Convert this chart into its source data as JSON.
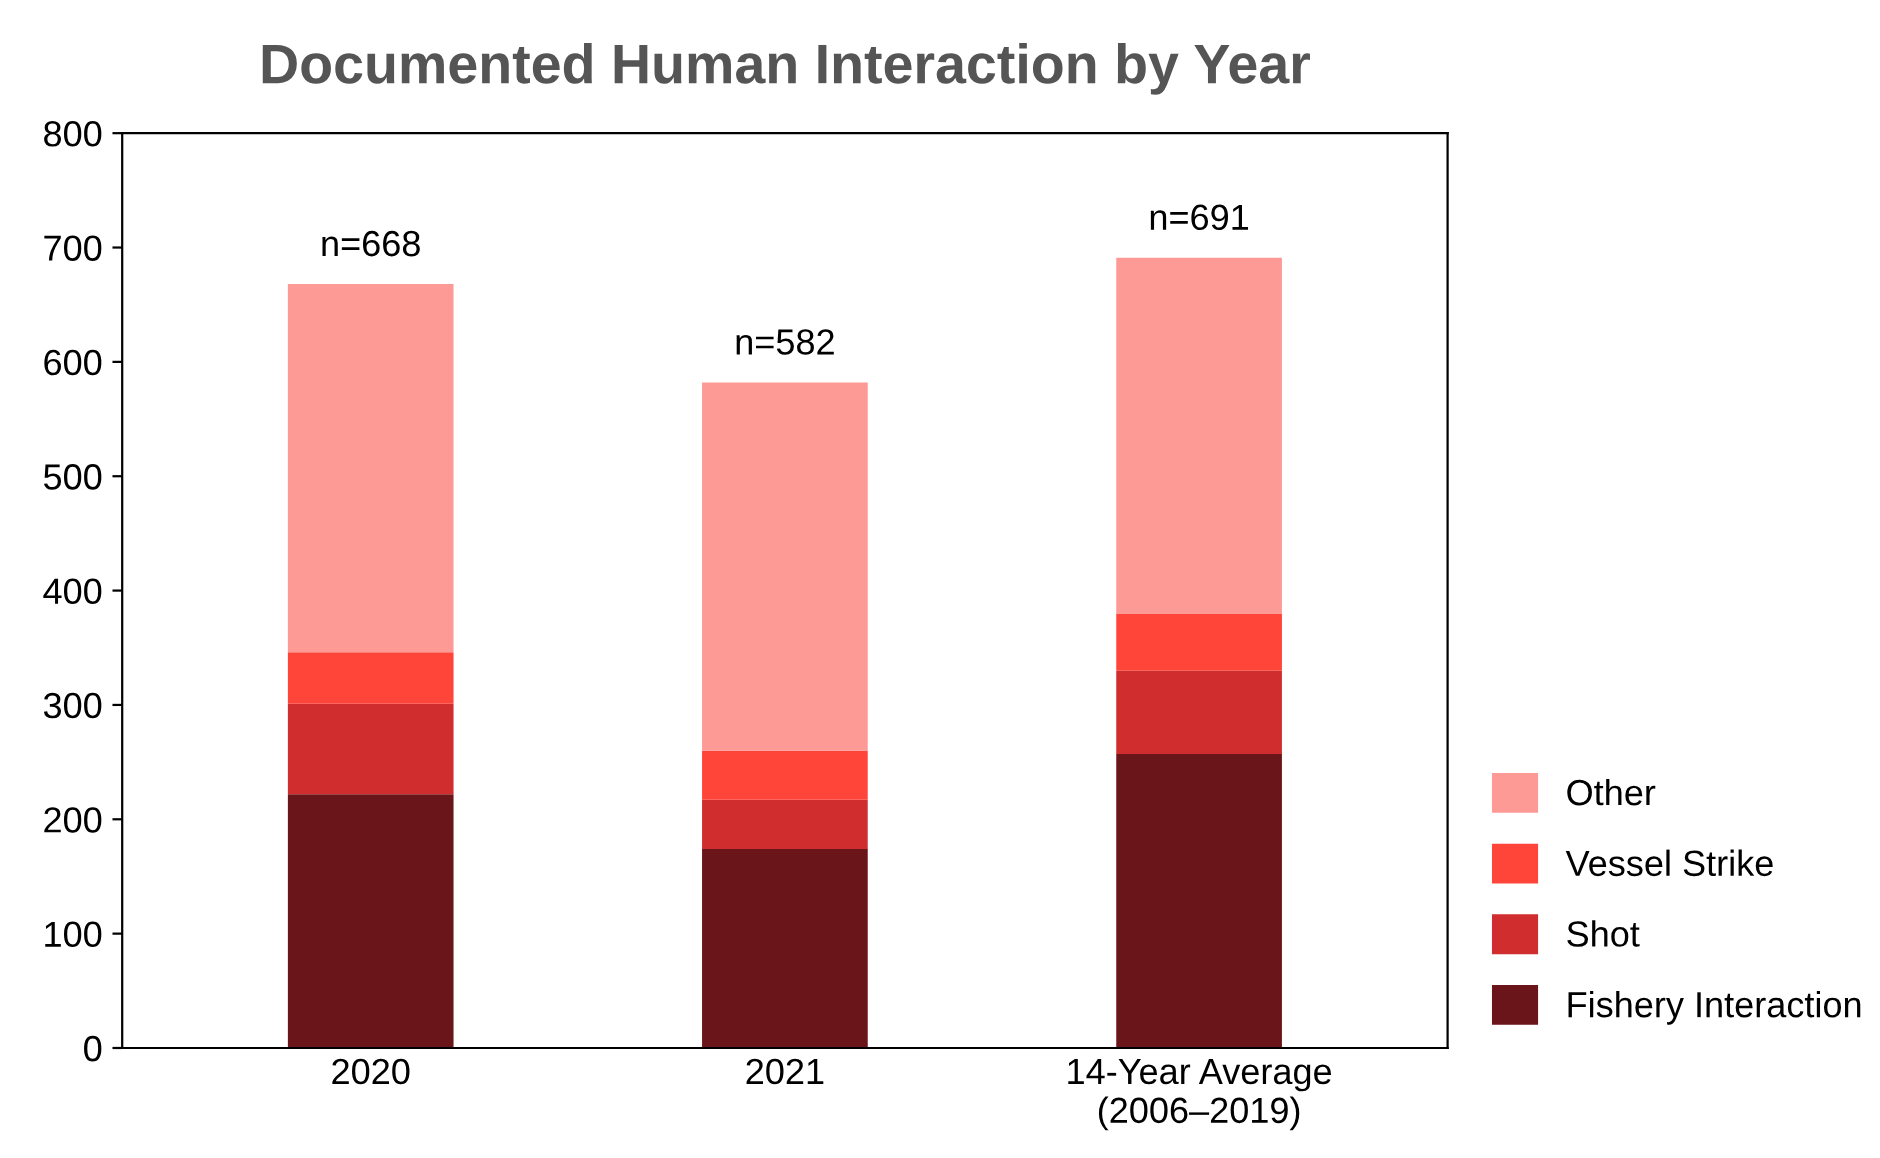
{
  "chart_data": {
    "type": "bar",
    "title": "Documented Human Interaction by Year",
    "stacked": true,
    "categories": [
      "2020",
      "2021",
      "14-Year Average\n(2006–2019)"
    ],
    "series": [
      {
        "name": "Fishery Interaction",
        "color": "#6a1519",
        "values": [
          222,
          174,
          257
        ]
      },
      {
        "name": "Shot",
        "color": "#d02d2f",
        "values": [
          79,
          43,
          73
        ]
      },
      {
        "name": "Vessel Strike",
        "color": "#ff4539",
        "values": [
          45,
          43,
          50
        ]
      },
      {
        "name": "Other",
        "color": "#fe9a96",
        "values": [
          322,
          322,
          311
        ]
      }
    ],
    "totals": [
      "n=668",
      "n=582",
      "n=691"
    ],
    "ylim": [
      0,
      800
    ],
    "yticks": [
      0,
      100,
      200,
      300,
      400,
      500,
      600,
      700,
      800
    ],
    "grid": false,
    "legend": "bottom right"
  }
}
